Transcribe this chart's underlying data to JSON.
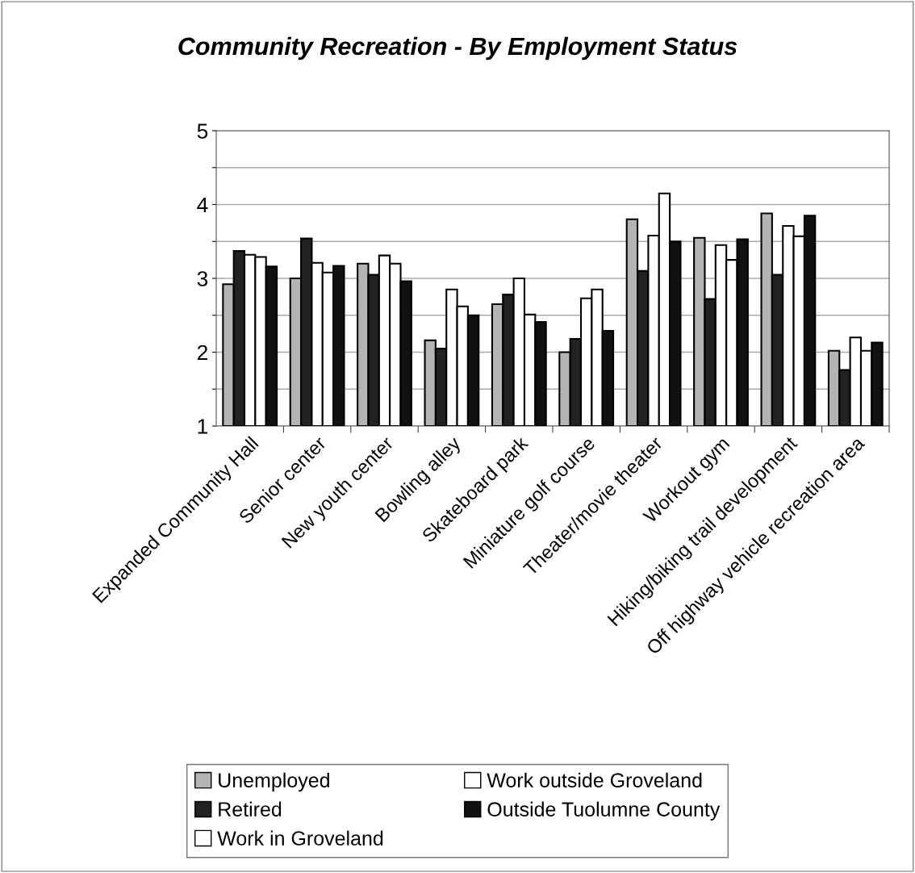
{
  "chart_data": {
    "type": "bar",
    "title": "Community Recreation - By Employment Status",
    "categories": [
      "Expanded Community Hall",
      "Senior center",
      "New youth center",
      "Bowling alley",
      "Skateboard park",
      "Miniature golf course",
      "Theater/movie theater",
      "Workout gym",
      "Hiking/biking trail development",
      "Off highway vehicle recreation area"
    ],
    "series": [
      {
        "name": "Unemployed",
        "color": "#b4b4b4",
        "values": [
          2.92,
          3.0,
          3.2,
          2.16,
          2.65,
          2.0,
          3.8,
          3.55,
          3.88,
          2.02
        ]
      },
      {
        "name": "Retired",
        "color": "#222222",
        "values": [
          3.37,
          3.54,
          3.05,
          2.05,
          2.78,
          2.18,
          3.1,
          2.72,
          3.05,
          1.76
        ]
      },
      {
        "name": "Work in Groveland",
        "color": "#ffffff",
        "values": [
          3.32,
          3.21,
          3.31,
          2.85,
          3.0,
          2.73,
          3.58,
          3.45,
          3.71,
          2.2
        ]
      },
      {
        "name": "Work outside Groveland",
        "color": "#ffffff",
        "values": [
          3.29,
          3.08,
          3.2,
          2.62,
          2.51,
          2.85,
          4.15,
          3.25,
          3.57,
          2.02
        ]
      },
      {
        "name": "Outside Tuolumne County",
        "color": "#111111",
        "values": [
          3.16,
          3.17,
          2.96,
          2.5,
          2.41,
          2.29,
          3.5,
          3.53,
          3.85,
          2.13
        ]
      }
    ],
    "ylim": [
      1,
      5
    ],
    "yticks": [
      1,
      {
        "value": 1.5,
        "label": null
      },
      2,
      {
        "value": 2.5,
        "label": null
      },
      3,
      {
        "value": 3.5,
        "label": null
      },
      4,
      {
        "value": 4.5,
        "label": null
      },
      5
    ],
    "grid": "y",
    "legend": "bottom"
  }
}
